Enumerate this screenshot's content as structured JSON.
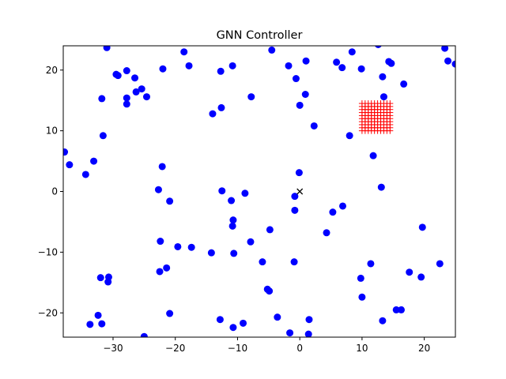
{
  "chart_data": {
    "type": "scatter",
    "title": "GNN Controller",
    "xlabel": "",
    "ylabel": "",
    "xlim": [
      -38,
      25
    ],
    "ylim": [
      -24,
      24
    ],
    "xticks": [
      -30,
      -20,
      -10,
      0,
      10,
      20
    ],
    "yticks": [
      -20,
      -10,
      0,
      10,
      20
    ],
    "xtick_labels": [
      "−30",
      "−20",
      "−10",
      "0",
      "10",
      "20"
    ],
    "ytick_labels": [
      "−20",
      "−10",
      "0",
      "10",
      "20"
    ],
    "grid": false,
    "legend": null,
    "series": [
      {
        "marker": "circle",
        "color": "#0000ff",
        "points": [
          [
            -31,
            23.7
          ],
          [
            -29.5,
            19.3
          ],
          [
            -29.2,
            19.1
          ],
          [
            -27.8,
            19.9
          ],
          [
            -26.5,
            18.7
          ],
          [
            -26.3,
            16.4
          ],
          [
            -25.4,
            16.9
          ],
          [
            -24.6,
            15.6
          ],
          [
            -27.8,
            15.4
          ],
          [
            -27.8,
            14.4
          ],
          [
            -31.8,
            15.3
          ],
          [
            -31.6,
            9.2
          ],
          [
            -22,
            20.2
          ],
          [
            -18.6,
            23
          ],
          [
            -17.8,
            20.7
          ],
          [
            -12.7,
            19.8
          ],
          [
            -10.8,
            20.7
          ],
          [
            -12.6,
            13.8
          ],
          [
            -14,
            12.8
          ],
          [
            -7.8,
            15.6
          ],
          [
            -4.5,
            23.3
          ],
          [
            -1.8,
            20.7
          ],
          [
            -0.6,
            18.6
          ],
          [
            1,
            21.5
          ],
          [
            0.9,
            16
          ],
          [
            0,
            14.2
          ],
          [
            2.3,
            10.8
          ],
          [
            5.9,
            21.3
          ],
          [
            6.8,
            20.4
          ],
          [
            8.4,
            23
          ],
          [
            9.9,
            20.2
          ],
          [
            12.6,
            24.2
          ],
          [
            14.3,
            21.4
          ],
          [
            14.7,
            21.1
          ],
          [
            13.3,
            18.9
          ],
          [
            13.5,
            15.6
          ],
          [
            16.7,
            17.7
          ],
          [
            23.3,
            23.6
          ],
          [
            23.8,
            21.5
          ],
          [
            25,
            21
          ],
          [
            -37.8,
            6.5
          ],
          [
            -37,
            4.4
          ],
          [
            -34.4,
            2.8
          ],
          [
            -33.1,
            5
          ],
          [
            -22.1,
            4.1
          ],
          [
            -22.7,
            0.3
          ],
          [
            -20.9,
            -1.6
          ],
          [
            -12.5,
            0.1
          ],
          [
            -11,
            -1.5
          ],
          [
            -8.8,
            -0.3
          ],
          [
            -0.8,
            -0.8
          ],
          [
            -0.1,
            3.1
          ],
          [
            -0.8,
            -3.1
          ],
          [
            5.3,
            -3.4
          ],
          [
            6.9,
            -2.4
          ],
          [
            4.3,
            -6.8
          ],
          [
            8,
            9.2
          ],
          [
            11.8,
            5.9
          ],
          [
            13.1,
            0.7
          ],
          [
            -10.7,
            -4.7
          ],
          [
            -10.8,
            -5.7
          ],
          [
            -22.4,
            -8.2
          ],
          [
            -19.6,
            -9.1
          ],
          [
            -17.4,
            -9.2
          ],
          [
            -14.2,
            -10.1
          ],
          [
            -10.6,
            -10.2
          ],
          [
            -7.9,
            -8.3
          ],
          [
            -4.8,
            -6.3
          ],
          [
            -6,
            -11.6
          ],
          [
            -0.9,
            -11.6
          ],
          [
            -22.5,
            -13.2
          ],
          [
            -21.4,
            -12.6
          ],
          [
            -32,
            -14.2
          ],
          [
            -30.7,
            -14.1
          ],
          [
            -30.8,
            -14.9
          ],
          [
            -5.2,
            -16.1
          ],
          [
            -4.9,
            -16.4
          ],
          [
            9.8,
            -14.3
          ],
          [
            11.4,
            -11.9
          ],
          [
            10,
            -17.4
          ],
          [
            17.6,
            -13.3
          ],
          [
            19.5,
            -14.1
          ],
          [
            19.7,
            -5.9
          ],
          [
            22.5,
            -11.9
          ],
          [
            -32.4,
            -20.4
          ],
          [
            -33.7,
            -21.9
          ],
          [
            -31.8,
            -21.8
          ],
          [
            -25,
            -23.9
          ],
          [
            -20.9,
            -20.1
          ],
          [
            -12.8,
            -21.1
          ],
          [
            -10.7,
            -22.4
          ],
          [
            -9.1,
            -21.7
          ],
          [
            -3.6,
            -20.7
          ],
          [
            -1.6,
            -23.3
          ],
          [
            1.5,
            -21.1
          ],
          [
            1.4,
            -23.5
          ],
          [
            13.3,
            -21.3
          ],
          [
            15.5,
            -19.5
          ],
          [
            16.3,
            -19.5
          ]
        ]
      },
      {
        "marker": "plus",
        "color": "#ff0000",
        "points_desc": "grid",
        "x_from": 10,
        "x_to": 14.5,
        "x_step": 0.5,
        "y_from": 10,
        "y_to": 14.5,
        "y_step": 0.5
      },
      {
        "marker": "x",
        "color": "#000000",
        "points": [
          [
            0,
            0
          ]
        ]
      }
    ]
  }
}
